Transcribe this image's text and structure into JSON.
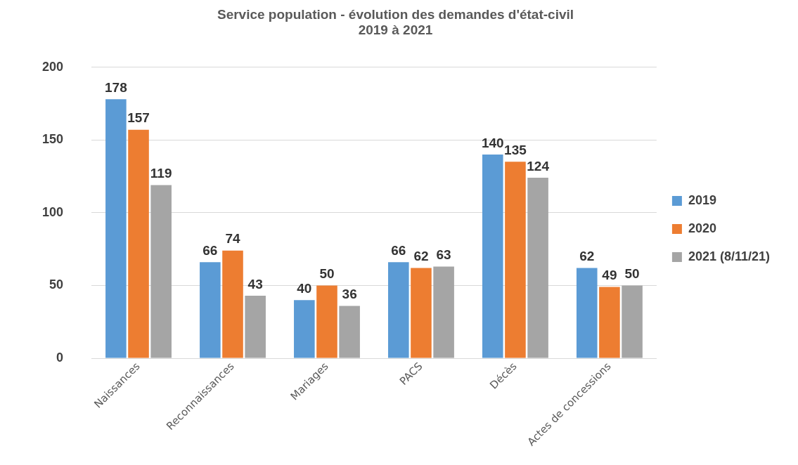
{
  "chart_data": {
    "type": "bar",
    "title": "Service population - évolution des demandes d'état-civil",
    "subtitle": "2019 à 2021",
    "categories": [
      "Naissances",
      "Reconnaissances",
      "Mariages",
      "PACS",
      "Décès",
      "Actes de concessions"
    ],
    "series": [
      {
        "name": "2019",
        "color": "#5b9bd5",
        "values": [
          178,
          66,
          40,
          66,
          140,
          62
        ]
      },
      {
        "name": "2020",
        "color": "#ed7d31",
        "values": [
          157,
          74,
          50,
          62,
          135,
          49
        ]
      },
      {
        "name": "2021 (8/11/21)",
        "color": "#a5a5a5",
        "values": [
          119,
          43,
          36,
          63,
          124,
          50
        ]
      }
    ],
    "ylim": [
      0,
      200
    ],
    "yticks": [
      0,
      50,
      100,
      150,
      200
    ],
    "grid": "y",
    "legend": "right",
    "data_labels": true
  }
}
